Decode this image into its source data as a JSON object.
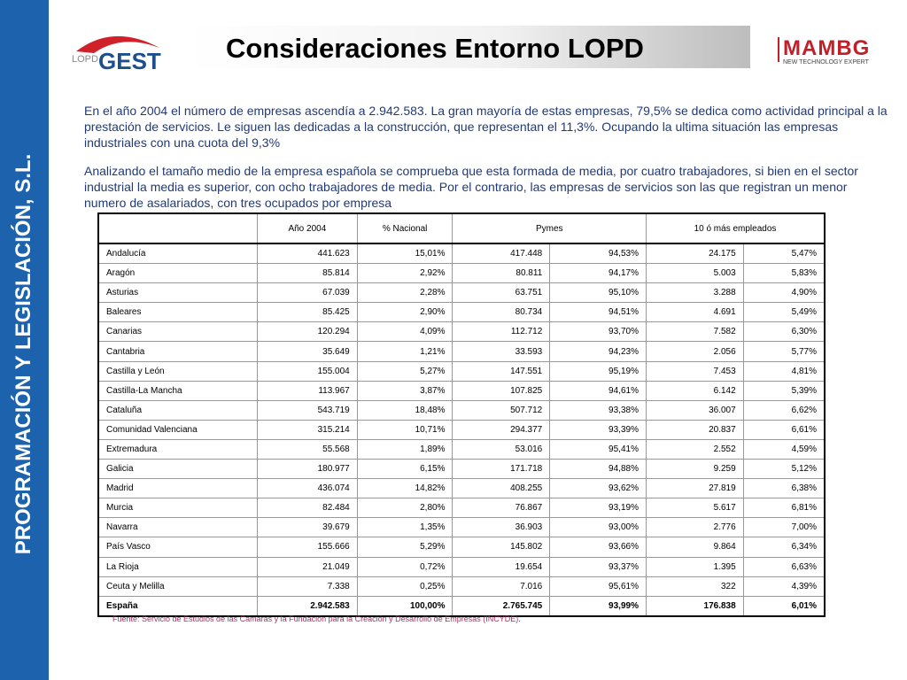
{
  "sidebar": "PROGRAMACIÓN Y LEGISLACIÓN, S.L.",
  "logo_left": {
    "small": "LOPD",
    "big": "GEST"
  },
  "title": "Consideraciones Entorno LOPD",
  "logo_right": {
    "name": "MAMBG",
    "tagline": "NEW TECHNOLOGY EXPERT"
  },
  "paragraphs": [
    "En el año 2004 el número de empresas ascendía a 2.942.583. La gran mayoría de estas empresas, 79,5% se dedica como actividad principal a la prestación de servicios. Le siguen las dedicadas a la construcción, que representan el 11,3%. Ocupando la ultima situación las empresas industriales con una cuota del 9,3%",
    "Analizando el tamaño medio de la empresa española se comprueba que esta formada de media, por cuatro trabajadores, si bien en el sector industrial la media es superior, con ocho trabajadores de media. Por el contrario, las empresas de servicios son las que registran un menor numero de asalariados, con tres ocupados por empresa"
  ],
  "table": {
    "headers": [
      "Año 2004",
      "% Nacional",
      "Pymes",
      "10 ó más empleados"
    ],
    "rows": [
      [
        "Andalucía",
        "441.623",
        "15,01%",
        "417.448",
        "94,53%",
        "24.175",
        "5,47%"
      ],
      [
        "Aragón",
        "85.814",
        "2,92%",
        "80.811",
        "94,17%",
        "5.003",
        "5,83%"
      ],
      [
        "Asturias",
        "67.039",
        "2,28%",
        "63.751",
        "95,10%",
        "3.288",
        "4,90%"
      ],
      [
        "Baleares",
        "85.425",
        "2,90%",
        "80.734",
        "94,51%",
        "4.691",
        "5,49%"
      ],
      [
        "Canarias",
        "120.294",
        "4,09%",
        "112.712",
        "93,70%",
        "7.582",
        "6,30%"
      ],
      [
        "Cantabria",
        "35.649",
        "1,21%",
        "33.593",
        "94,23%",
        "2.056",
        "5,77%"
      ],
      [
        "Castilla y León",
        "155.004",
        "5,27%",
        "147.551",
        "95,19%",
        "7.453",
        "4,81%"
      ],
      [
        "Castilla-La Mancha",
        "113.967",
        "3,87%",
        "107.825",
        "94,61%",
        "6.142",
        "5,39%"
      ],
      [
        "Cataluña",
        "543.719",
        "18,48%",
        "507.712",
        "93,38%",
        "36.007",
        "6,62%"
      ],
      [
        "Comunidad Valenciana",
        "315.214",
        "10,71%",
        "294.377",
        "93,39%",
        "20.837",
        "6,61%"
      ],
      [
        "Extremadura",
        "55.568",
        "1,89%",
        "53.016",
        "95,41%",
        "2.552",
        "4,59%"
      ],
      [
        "Galicia",
        "180.977",
        "6,15%",
        "171.718",
        "94,88%",
        "9.259",
        "5,12%"
      ],
      [
        "Madrid",
        "436.074",
        "14,82%",
        "408.255",
        "93,62%",
        "27.819",
        "6,38%"
      ],
      [
        "Murcia",
        "82.484",
        "2,80%",
        "76.867",
        "93,19%",
        "5.617",
        "6,81%"
      ],
      [
        "Navarra",
        "39.679",
        "1,35%",
        "36.903",
        "93,00%",
        "2.776",
        "7,00%"
      ],
      [
        "País Vasco",
        "155.666",
        "5,29%",
        "145.802",
        "93,66%",
        "9.864",
        "6,34%"
      ],
      [
        "La Rioja",
        "21.049",
        "0,72%",
        "19.654",
        "93,37%",
        "1.395",
        "6,63%"
      ],
      [
        "Ceuta y Melilla",
        "7.338",
        "0,25%",
        "7.016",
        "95,61%",
        "322",
        "4,39%"
      ],
      [
        "España",
        "2.942.583",
        "100,00%",
        "2.765.745",
        "93,99%",
        "176.838",
        "6,01%"
      ]
    ]
  },
  "footnote": "Fuente: Servicio de Estudios de las Cámaras y la Fundación para la Creación y Desarrollo de Empresas (INCYDE)."
}
